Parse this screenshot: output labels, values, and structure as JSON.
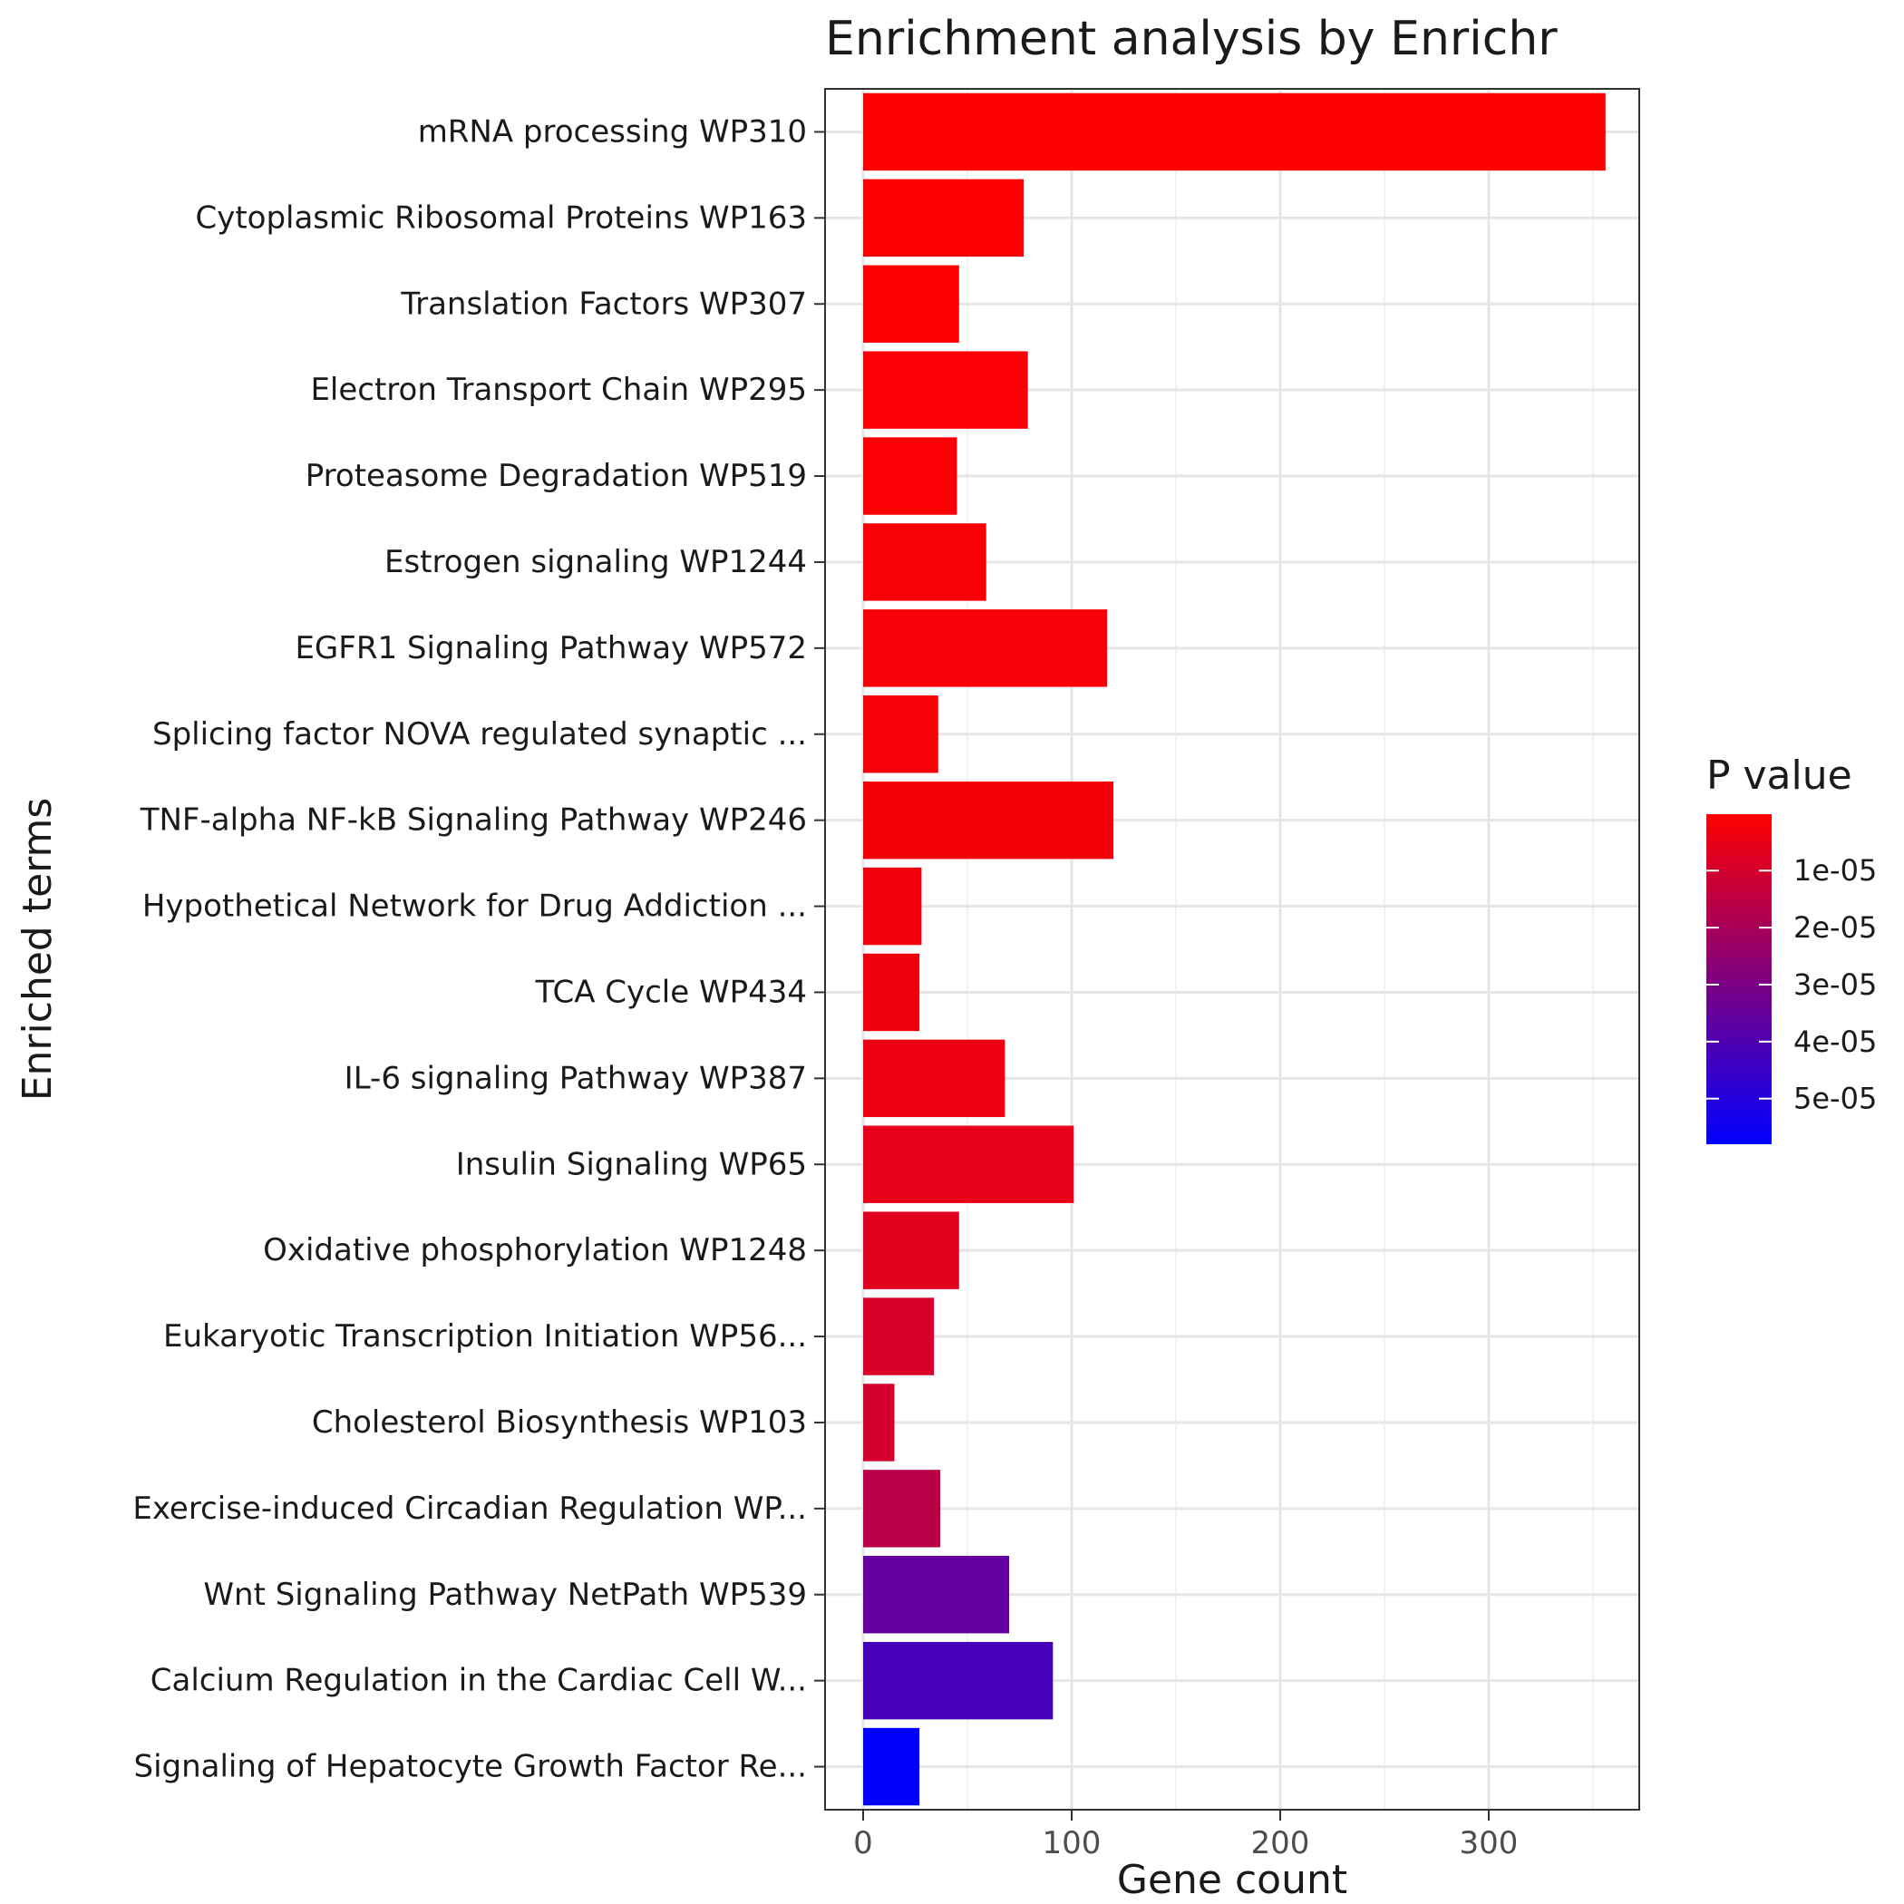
{
  "chart_data": {
    "type": "bar",
    "orientation": "horizontal",
    "title": "Enrichment analysis by Enrichr",
    "xlabel": "Gene count",
    "ylabel": "Enriched terms",
    "xlim": [
      0,
      370
    ],
    "x_ticks": [
      0,
      100,
      200,
      300
    ],
    "grid": true,
    "bars": [
      {
        "label": "mRNA processing WP310",
        "value": 356,
        "p_value": 1e-07
      },
      {
        "label": "Cytoplasmic Ribosomal Proteins WP163",
        "value": 77,
        "p_value": 5e-07
      },
      {
        "label": "Translation Factors WP307",
        "value": 46,
        "p_value": 8e-07
      },
      {
        "label": "Electron Transport Chain WP295",
        "value": 79,
        "p_value": 1e-06
      },
      {
        "label": "Proteasome Degradation WP519",
        "value": 45,
        "p_value": 1.2e-06
      },
      {
        "label": "Estrogen signaling WP1244",
        "value": 59,
        "p_value": 1.5e-06
      },
      {
        "label": "EGFR1 Signaling Pathway WP572",
        "value": 117,
        "p_value": 1.8e-06
      },
      {
        "label": "Splicing factor NOVA regulated synaptic ...",
        "value": 36,
        "p_value": 2e-06
      },
      {
        "label": "TNF-alpha NF-kB Signaling Pathway WP246",
        "value": 120,
        "p_value": 2.5e-06
      },
      {
        "label": "Hypothetical Network for Drug Addiction ...",
        "value": 28,
        "p_value": 3e-06
      },
      {
        "label": "TCA Cycle WP434",
        "value": 27,
        "p_value": 3.5e-06
      },
      {
        "label": "IL-6 signaling Pathway WP387",
        "value": 68,
        "p_value": 4e-06
      },
      {
        "label": "Insulin Signaling WP65",
        "value": 101,
        "p_value": 5.5e-06
      },
      {
        "label": "Oxidative phosphorylation WP1248",
        "value": 46,
        "p_value": 7e-06
      },
      {
        "label": "Eukaryotic Transcription Initiation WP56...",
        "value": 34,
        "p_value": 9e-06
      },
      {
        "label": "Cholesterol Biosynthesis WP103",
        "value": 15,
        "p_value": 1e-05
      },
      {
        "label": "Exercise-induced Circadian Regulation WP...",
        "value": 37,
        "p_value": 1.6e-05
      },
      {
        "label": "Wnt Signaling Pathway NetPath WP539",
        "value": 70,
        "p_value": 3.6e-05
      },
      {
        "label": "Calcium Regulation in the Cardiac Cell W...",
        "value": 91,
        "p_value": 4.2e-05
      },
      {
        "label": "Signaling of Hepatocyte Growth Factor Re...",
        "value": 27,
        "p_value": 5.8e-05
      }
    ],
    "legend": {
      "title": "P value",
      "placement": "right",
      "low_color": "#FF0000",
      "high_color": "#0000FF",
      "range": [
        1e-07,
        5.8e-05
      ],
      "ticks": [
        {
          "value": 1e-05,
          "label": "1e-05"
        },
        {
          "value": 2e-05,
          "label": "2e-05"
        },
        {
          "value": 3e-05,
          "label": "3e-05"
        },
        {
          "value": 4e-05,
          "label": "4e-05"
        },
        {
          "value": 5e-05,
          "label": "5e-05"
        }
      ]
    }
  }
}
